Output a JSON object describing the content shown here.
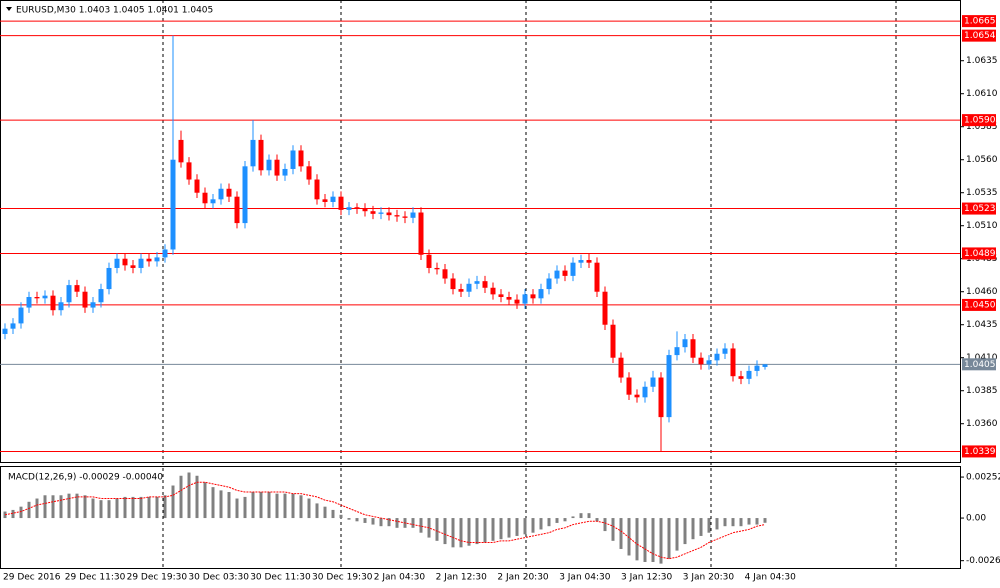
{
  "chart_data": [
    {
      "type": "candlestick",
      "title": "EURUSD,M30  1.0403 1.0405 1.0401 1.0405",
      "x_labels": [
        "29 Dec 2016",
        "29 Dec 11:30",
        "29 Dec 19:30",
        "30 Dec 03:30",
        "30 Dec 11:30",
        "30 Dec 19:30",
        "2 Jan 04:30",
        "2 Jan 12:30",
        "2 Jan 20:30",
        "3 Jan 04:30",
        "3 Jan 12:30",
        "3 Jan 20:30",
        "4 Jan 04:30"
      ],
      "open": [
        1.0428,
        1.0432,
        1.0436,
        1.0448,
        1.0456,
        1.0455,
        1.0457,
        1.0446,
        1.0452,
        1.0465,
        1.046,
        1.0448,
        1.0452,
        1.0462,
        1.0478,
        1.0485,
        1.048,
        1.0478,
        1.0485,
        1.0483,
        1.0486,
        1.0492,
        1.0575,
        1.0558,
        1.0545,
        1.0535,
        1.0527,
        1.053,
        1.0538,
        1.0532,
        1.0512,
        1.0555,
        1.0575,
        1.0552,
        1.056,
        1.0548,
        1.0553,
        1.0567,
        1.0555,
        1.0545,
        1.053,
        1.0528,
        1.0532,
        1.0522,
        1.0524,
        1.0523,
        1.0521,
        1.0519,
        1.052,
        1.0518,
        1.0517,
        1.0516,
        1.052,
        1.0488,
        1.0478,
        1.0477,
        1.047,
        1.0462,
        1.046,
        1.0466,
        1.0468,
        1.0463,
        1.0458,
        1.0456,
        1.0454,
        1.0451,
        1.0458,
        1.0455,
        1.0462,
        1.047,
        1.0476,
        1.0472,
        1.0482,
        1.0484,
        1.0482,
        1.046,
        1.0435,
        1.041,
        1.0395,
        1.0382,
        1.038,
        1.0388,
        1.0395,
        1.0365,
        1.0412,
        1.0418,
        1.0424,
        1.041,
        1.0405,
        1.0408,
        1.0413,
        1.0417,
        1.0396,
        1.0394,
        1.04,
        1.0403
      ],
      "high": [
        1.0436,
        1.044,
        1.0452,
        1.046,
        1.046,
        1.0461,
        1.0461,
        1.0456,
        1.0469,
        1.0469,
        1.0464,
        1.0456,
        1.0466,
        1.0482,
        1.0489,
        1.0489,
        1.0484,
        1.0489,
        1.0489,
        1.049,
        1.0496,
        1.0654,
        1.0582,
        1.0562,
        1.0549,
        1.0539,
        1.0534,
        1.0542,
        1.0542,
        1.0536,
        1.0559,
        1.059,
        1.0579,
        1.0564,
        1.0564,
        1.0557,
        1.0571,
        1.0571,
        1.0559,
        1.0549,
        1.0534,
        1.0536,
        1.0536,
        1.0528,
        1.0527,
        1.0527,
        1.0525,
        1.0524,
        1.0524,
        1.0522,
        1.0521,
        1.0524,
        1.0524,
        1.0492,
        1.0482,
        1.0481,
        1.0474,
        1.0466,
        1.047,
        1.0472,
        1.0472,
        1.0467,
        1.0462,
        1.046,
        1.0458,
        1.0462,
        1.0462,
        1.0466,
        1.0474,
        1.048,
        1.048,
        1.0486,
        1.0488,
        1.0489,
        1.0486,
        1.0464,
        1.0439,
        1.0414,
        1.0399,
        1.0386,
        1.0392,
        1.04,
        1.0399,
        1.0416,
        1.043,
        1.0428,
        1.0428,
        1.0414,
        1.0412,
        1.0417,
        1.0421,
        1.0421,
        1.04,
        1.0404,
        1.0408,
        1.0405
      ],
      "low": [
        1.0424,
        1.0428,
        1.0432,
        1.0444,
        1.0451,
        1.0451,
        1.0442,
        1.0442,
        1.0448,
        1.0456,
        1.0444,
        1.0444,
        1.0448,
        1.0458,
        1.0474,
        1.0476,
        1.0474,
        1.0474,
        1.0479,
        1.0479,
        1.0482,
        1.0488,
        1.0554,
        1.0541,
        1.0531,
        1.0523,
        1.0523,
        1.0526,
        1.0528,
        1.0508,
        1.0508,
        1.0551,
        1.0548,
        1.0548,
        1.0544,
        1.0544,
        1.0549,
        1.0551,
        1.0541,
        1.0526,
        1.0524,
        1.0524,
        1.0518,
        1.0518,
        1.0519,
        1.0517,
        1.0515,
        1.0515,
        1.0514,
        1.0513,
        1.0512,
        1.0512,
        1.0484,
        1.0474,
        1.0473,
        1.0466,
        1.0458,
        1.0456,
        1.0456,
        1.0462,
        1.0459,
        1.0454,
        1.0452,
        1.045,
        1.0447,
        1.0447,
        1.0451,
        1.0451,
        1.0458,
        1.0466,
        1.0468,
        1.0468,
        1.0478,
        1.0478,
        1.0456,
        1.0431,
        1.0406,
        1.0391,
        1.0378,
        1.0376,
        1.0376,
        1.0384,
        1.0339,
        1.0361,
        1.0408,
        1.0414,
        1.0406,
        1.0401,
        1.0401,
        1.0404,
        1.0409,
        1.0392,
        1.039,
        1.039,
        1.0396,
        1.0401
      ],
      "close": [
        1.0432,
        1.0436,
        1.0448,
        1.0456,
        1.0455,
        1.0457,
        1.0446,
        1.0452,
        1.0465,
        1.046,
        1.0448,
        1.0452,
        1.0462,
        1.0478,
        1.0485,
        1.048,
        1.0478,
        1.0485,
        1.0483,
        1.0486,
        1.0492,
        1.056,
        1.0558,
        1.0545,
        1.0535,
        1.0527,
        1.053,
        1.0538,
        1.0532,
        1.0512,
        1.0555,
        1.0575,
        1.0552,
        1.056,
        1.0548,
        1.0553,
        1.0567,
        1.0555,
        1.0545,
        1.053,
        1.0528,
        1.0532,
        1.0522,
        1.0524,
        1.0523,
        1.0521,
        1.0519,
        1.052,
        1.0518,
        1.0517,
        1.0516,
        1.052,
        1.0488,
        1.0478,
        1.0477,
        1.047,
        1.0462,
        1.046,
        1.0466,
        1.0468,
        1.0463,
        1.0458,
        1.0456,
        1.0454,
        1.0451,
        1.0458,
        1.0455,
        1.0462,
        1.047,
        1.0476,
        1.0472,
        1.0482,
        1.0484,
        1.0482,
        1.046,
        1.0435,
        1.041,
        1.0395,
        1.0382,
        1.038,
        1.0388,
        1.0395,
        1.0365,
        1.0412,
        1.0418,
        1.0424,
        1.041,
        1.0405,
        1.0408,
        1.0413,
        1.0417,
        1.0396,
        1.0394,
        1.04,
        1.0404,
        1.0405
      ],
      "up_color": "#1e90ff",
      "down_color": "#ff0000",
      "ylim": [
        1.0331,
        1.0681
      ],
      "yticks": [
        1.0635,
        {
          "value": 1.061,
          "label": "1.0610"
        },
        1.0585,
        {
          "value": 1.056,
          "label": "1.0560"
        },
        1.0535,
        {
          "value": 1.051,
          "label": "1.0510"
        },
        1.0485,
        {
          "value": 1.046,
          "label": "1.0460"
        },
        1.0435,
        {
          "value": 1.041,
          "label": "1.0410"
        },
        1.0385,
        {
          "value": 1.036,
          "label": "1.0360"
        }
      ],
      "levels": [
        {
          "value": 1.0665,
          "color": "#ff0000"
        },
        {
          "value": 1.0654,
          "color": "#ff0000"
        },
        {
          "value": 1.059,
          "label": "1.0590",
          "color": "#ff0000"
        },
        {
          "value": 1.0523,
          "color": "#ff0000"
        },
        {
          "value": 1.0489,
          "color": "#ff0000"
        },
        {
          "value": 1.045,
          "label": "1.0450",
          "color": "#ff0000"
        },
        {
          "value": 1.0405,
          "color": "#778899"
        },
        {
          "value": 1.0339,
          "color": "#ff0000"
        }
      ]
    },
    {
      "type": "macd",
      "title": "MACD(12,26,9) -0.00029 -0.00040",
      "ylim": [
        -0.00307,
        0.0032
      ],
      "yticks": [
        0.00252,
        {
          "value": 0,
          "label": "0.00"
        },
        -0.00262
      ],
      "histogram": {
        "color": "#808080",
        "values": [
          0.0004,
          0.0005,
          0.0007,
          0.001,
          0.0012,
          0.0014,
          0.0014,
          0.0014,
          0.0015,
          0.0015,
          0.0014,
          0.0012,
          0.0011,
          0.0011,
          0.0012,
          0.0013,
          0.0013,
          0.0013,
          0.0013,
          0.0013,
          0.0014,
          0.002,
          0.0026,
          0.0028,
          0.0026,
          0.0022,
          0.0019,
          0.0017,
          0.0016,
          0.0012,
          0.0013,
          0.0016,
          0.0016,
          0.0016,
          0.0015,
          0.0015,
          0.0015,
          0.0014,
          0.0012,
          0.0009,
          0.0007,
          0.0005,
          0.0002,
          -0.0001,
          -0.0002,
          -0.0003,
          -0.0004,
          -0.0005,
          -0.0005,
          -0.0006,
          -0.0006,
          -0.0006,
          -0.0009,
          -0.0012,
          -0.0014,
          -0.0016,
          -0.0018,
          -0.0018,
          -0.0017,
          -0.0016,
          -0.0015,
          -0.0014,
          -0.0013,
          -0.0012,
          -0.0011,
          -0.001,
          -0.0009,
          -0.0007,
          -0.0005,
          -0.0003,
          -0.0002,
          0.0001,
          0.0003,
          0.0003,
          -0.0002,
          -0.0008,
          -0.0014,
          -0.0019,
          -0.0023,
          -0.0026,
          -0.0027,
          -0.0027,
          -0.0028,
          -0.0025,
          -0.002,
          -0.0016,
          -0.0013,
          -0.0011,
          -0.0009,
          -0.0007,
          -0.0005,
          -0.0005,
          -0.0005,
          -0.0004,
          -0.0004,
          -0.00029
        ]
      },
      "signal": {
        "color": "#ff0000",
        "values": [
          0.0002,
          0.0003,
          0.0004,
          0.0006,
          0.0008,
          0.0009,
          0.001,
          0.0011,
          0.0012,
          0.0013,
          0.0013,
          0.0013,
          0.0012,
          0.0012,
          0.0012,
          0.0012,
          0.0012,
          0.0012,
          0.0013,
          0.0013,
          0.0013,
          0.0014,
          0.0017,
          0.002,
          0.0022,
          0.0022,
          0.0021,
          0.002,
          0.0019,
          0.0017,
          0.0016,
          0.0016,
          0.0016,
          0.0016,
          0.0016,
          0.0016,
          0.0015,
          0.0015,
          0.0014,
          0.0013,
          0.0011,
          0.001,
          0.0008,
          0.0006,
          0.0004,
          0.0002,
          0.0001,
          0,
          -0.0001,
          -0.0002,
          -0.0003,
          -0.0004,
          -0.0005,
          -0.0006,
          -0.0008,
          -0.001,
          -0.0012,
          -0.0014,
          -0.0015,
          -0.0015,
          -0.0015,
          -0.0015,
          -0.0014,
          -0.0014,
          -0.0013,
          -0.0012,
          -0.0011,
          -0.001,
          -0.0009,
          -0.0007,
          -0.0006,
          -0.0004,
          -0.0003,
          -0.0002,
          -0.0002,
          -0.0003,
          -0.0005,
          -0.0008,
          -0.0012,
          -0.0016,
          -0.0019,
          -0.0022,
          -0.0024,
          -0.0025,
          -0.0024,
          -0.0022,
          -0.002,
          -0.0018,
          -0.0015,
          -0.0013,
          -0.0011,
          -0.0009,
          -0.0008,
          -0.0007,
          -0.0005,
          -0.0004
        ]
      }
    }
  ]
}
